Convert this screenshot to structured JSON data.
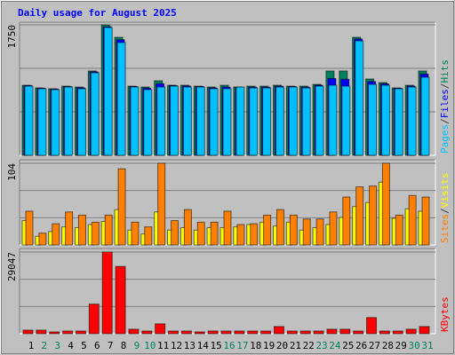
{
  "chart_data": [
    {
      "type": "bar",
      "title": "Daily usage for August 2025",
      "ylim": [
        0,
        1750
      ],
      "yticks": [
        1750
      ],
      "legend_separator": "/",
      "series": [
        {
          "name": "Hits",
          "color": "#00805c",
          "values": [
            940,
            904,
            893,
            928,
            916,
            1131,
            1750,
            1583,
            928,
            916,
            1000,
            940,
            940,
            928,
            916,
            940,
            916,
            928,
            928,
            940,
            928,
            928,
            952,
            1131,
            1131,
            1583,
            1024,
            976,
            904,
            940,
            1131
          ]
        },
        {
          "name": "Files",
          "color": "#0000ff",
          "values": [
            935,
            900,
            888,
            922,
            905,
            1120,
            1725,
            1550,
            922,
            900,
            960,
            935,
            930,
            922,
            905,
            915,
            912,
            915,
            915,
            928,
            922,
            915,
            940,
            1030,
            1020,
            1560,
            990,
            958,
            900,
            928,
            1090
          ]
        },
        {
          "name": "Pages",
          "color": "#00c0ff",
          "values": [
            928,
            893,
            881,
            916,
            893,
            1107,
            1714,
            1512,
            916,
            881,
            916,
            928,
            916,
            916,
            893,
            893,
            916,
            904,
            904,
            916,
            916,
            904,
            928,
            940,
            928,
            1535,
            952,
            940,
            893,
            916,
            1047
          ]
        }
      ]
    },
    {
      "type": "bar",
      "ylim": [
        0,
        104
      ],
      "yticks": [
        104
      ],
      "legend_separator": "/",
      "series": [
        {
          "name": "Visits",
          "color": "#ffff00",
          "values": [
            31,
            11,
            17,
            23,
            22,
            26,
            30,
            45,
            19,
            14,
            42,
            19,
            22,
            19,
            22,
            22,
            23,
            26,
            29,
            24,
            29,
            19,
            22,
            26,
            35,
            49,
            54,
            80,
            34,
            46,
            43
          ]
        },
        {
          "name": "Sites",
          "color": "#ff8000",
          "values": [
            43,
            15,
            27,
            42,
            38,
            29,
            38,
            97,
            29,
            23,
            104,
            31,
            45,
            29,
            29,
            43,
            26,
            27,
            38,
            45,
            38,
            33,
            33,
            42,
            61,
            74,
            75,
            104,
            38,
            63,
            61
          ]
        }
      ]
    },
    {
      "type": "bar",
      "ylim": [
        0,
        29047
      ],
      "yticks": [
        29047
      ],
      "categories": [
        "1",
        "2",
        "3",
        "4",
        "5",
        "6",
        "7",
        "8",
        "9",
        "10",
        "11",
        "12",
        "13",
        "14",
        "15",
        "16",
        "17",
        "18",
        "19",
        "20",
        "21",
        "22",
        "23",
        "24",
        "25",
        "26",
        "27",
        "28",
        "29",
        "30",
        "31"
      ],
      "category_colors": [
        "#000000",
        "#00805c",
        "#00805c",
        "#000000",
        "#000000",
        "#000000",
        "#000000",
        "#000000",
        "#00805c",
        "#00805c",
        "#000000",
        "#000000",
        "#000000",
        "#000000",
        "#000000",
        "#00805c",
        "#00805c",
        "#000000",
        "#000000",
        "#000000",
        "#000000",
        "#000000",
        "#00805c",
        "#00805c",
        "#000000",
        "#000000",
        "#000000",
        "#000000",
        "#000000",
        "#00805c",
        "#00805c"
      ],
      "series": [
        {
          "name": "KBytes",
          "color": "#ff0000",
          "values": [
            1276,
            1276,
            638,
            957,
            957,
            10527,
            29047,
            23925,
            1595,
            957,
            3509,
            957,
            957,
            638,
            957,
            957,
            957,
            957,
            957,
            2552,
            957,
            957,
            957,
            1595,
            1595,
            957,
            5742,
            957,
            957,
            1595,
            2552
          ]
        }
      ]
    }
  ]
}
